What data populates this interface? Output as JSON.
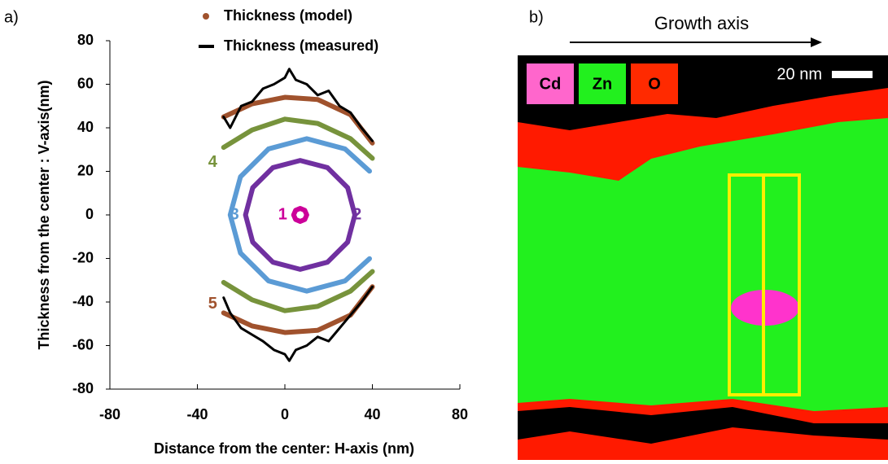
{
  "chart_data": {
    "type": "line",
    "panel_label": "a)",
    "xlabel": "Distance from the center: H-axis (nm)",
    "ylabel": "Thickness from the center : V-axis(nm)",
    "xlim": [
      -80,
      80
    ],
    "xticks": [
      -80,
      -40,
      0,
      40,
      80
    ],
    "ylim": [
      -80,
      80
    ],
    "yticks": [
      -80,
      -60,
      -40,
      -20,
      0,
      20,
      40,
      60,
      80
    ],
    "series": [
      {
        "name": "Thickness (model)",
        "color": "#a0522d",
        "marker": "dot",
        "curves": [
          {
            "label": "1",
            "color": "#cc0099",
            "closed": true,
            "x": [
              10,
              9.1,
              7,
              4.9,
              4,
              4.9,
              7,
              9.1
            ],
            "y": [
              0,
              2.1,
              3,
              2.1,
              0,
              -2.1,
              -3,
              -2.1
            ]
          },
          {
            "label": "2",
            "color": "#7030a0",
            "closed": true,
            "x": [
              32,
              28.7,
              19.5,
              7,
              -5.5,
              -14.7,
              -18,
              -14.7,
              -5.5,
              7,
              19.5,
              28.7
            ],
            "y": [
              0,
              12.5,
              21.7,
              25,
              21.7,
              12.5,
              0,
              -12.5,
              -21.7,
              -25,
              -21.7,
              -12.5
            ]
          },
          {
            "label": "3",
            "color": "#5b9bd5",
            "closed": false,
            "x": [
              38.7,
              27.5,
              10,
              -7.5,
              -20.3,
              -25,
              -20.3,
              -7.5,
              10,
              27.5,
              38.7
            ],
            "y": [
              20.1,
              30.3,
              35,
              30.3,
              17.5,
              0,
              -17.5,
              -30.3,
              -35,
              -30.3,
              -20.1
            ]
          },
          {
            "label": "4",
            "color": "#77933c",
            "closed": false,
            "x": [
              -28,
              -15,
              0,
              15,
              30,
              40
            ],
            "y": [
              31,
              39,
              44,
              42,
              35,
              26
            ]
          },
          {
            "color": "#77933c",
            "closed": false,
            "x": [
              -28,
              -15,
              0,
              15,
              30,
              40
            ],
            "y": [
              -31,
              -39,
              -44,
              -42,
              -35,
              -26
            ]
          },
          {
            "label": "5",
            "color": "#a0522d",
            "closed": false,
            "x": [
              -28,
              -15,
              0,
              15,
              30,
              40
            ],
            "y": [
              -45,
              -51,
              -54,
              -53,
              -46,
              -33
            ]
          },
          {
            "color": "#a0522d",
            "closed": false,
            "x": [
              -28,
              -15,
              0,
              15,
              30,
              40
            ],
            "y": [
              45,
              51,
              54,
              53,
              46,
              33
            ]
          }
        ]
      },
      {
        "name": "Thickness (measured)",
        "color": "#000000",
        "marker": "line",
        "curves": [
          {
            "color": "#000000",
            "closed": false,
            "x": [
              -28,
              -25,
              -20,
              -15,
              -10,
              -5,
              0,
              2,
              5,
              10,
              15,
              20,
              25,
              30,
              35,
              40
            ],
            "y": [
              45,
              40,
              50,
              52,
              58,
              60,
              63,
              67,
              62,
              60,
              55,
              57,
              50,
              47,
              40,
              34
            ]
          },
          {
            "color": "#000000",
            "closed": false,
            "x": [
              -28,
              -25,
              -20,
              -15,
              -10,
              -5,
              0,
              2,
              5,
              10,
              15,
              20,
              25,
              30,
              35,
              40
            ],
            "y": [
              -38,
              -45,
              -52,
              -55,
              -58,
              -62,
              -64,
              -67,
              -62,
              -60,
              -56,
              -58,
              -52,
              -46,
              -40,
              -33
            ]
          }
        ]
      }
    ]
  },
  "panel_b": {
    "panel_label": "b)",
    "axis_label": "Growth axis",
    "scale_bar": "20 nm",
    "legend": [
      "Cd",
      "Zn",
      "O"
    ]
  }
}
